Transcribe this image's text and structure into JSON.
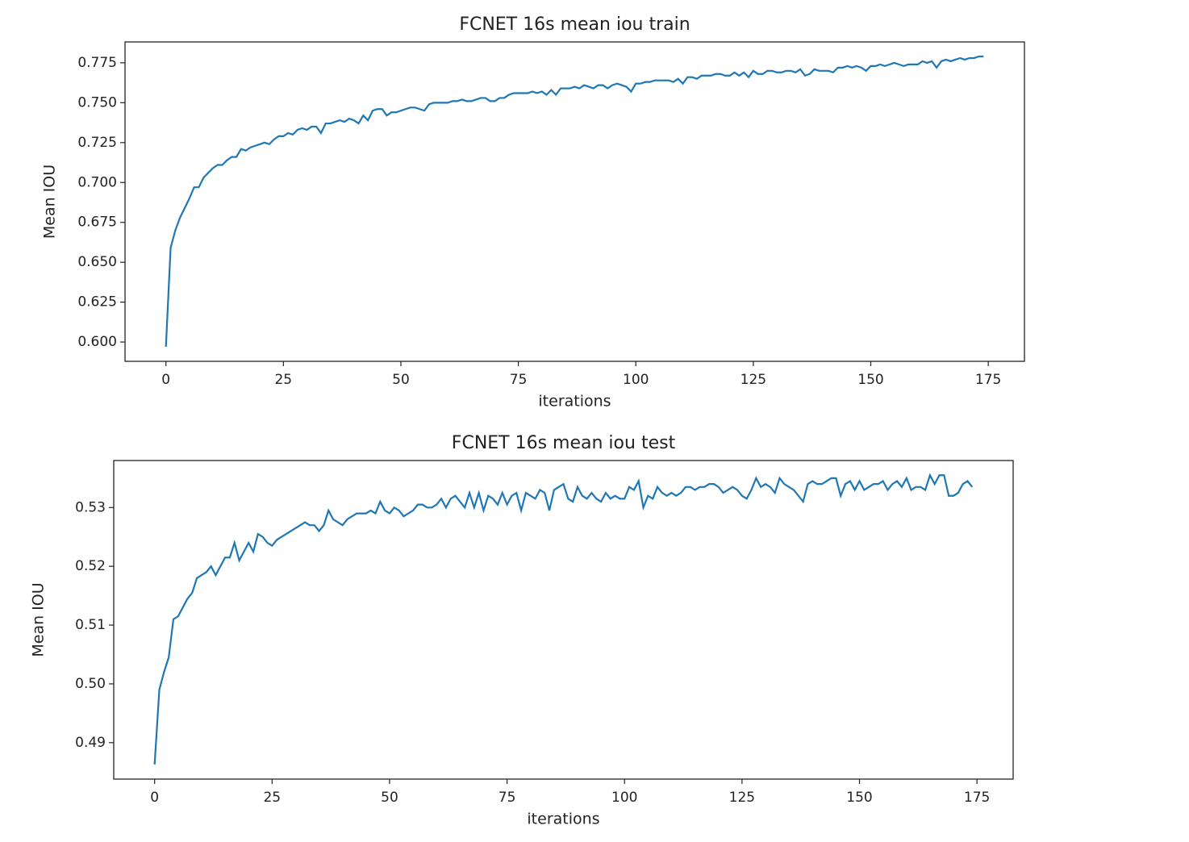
{
  "chart_data": [
    {
      "type": "line",
      "title": "FCNET 16s mean iou train",
      "xlabel": "iterations",
      "ylabel": "Mean IOU",
      "color": "#1f77b4",
      "x": [
        0,
        1,
        2,
        3,
        4,
        5,
        6,
        7,
        8,
        9,
        10,
        11,
        12,
        13,
        14,
        15,
        16,
        17,
        18,
        19,
        20,
        21,
        22,
        23,
        24,
        25,
        26,
        27,
        28,
        29,
        30,
        31,
        32,
        33,
        34,
        35,
        36,
        37,
        38,
        39,
        40,
        41,
        42,
        43,
        44,
        45,
        46,
        47,
        48,
        49,
        50,
        51,
        52,
        53,
        54,
        55,
        56,
        57,
        58,
        59,
        60,
        61,
        62,
        63,
        64,
        65,
        66,
        67,
        68,
        69,
        70,
        71,
        72,
        73,
        74,
        75,
        76,
        77,
        78,
        79,
        80,
        81,
        82,
        83,
        84,
        85,
        86,
        87,
        88,
        89,
        90,
        91,
        92,
        93,
        94,
        95,
        96,
        97,
        98,
        99,
        100,
        101,
        102,
        103,
        104,
        105,
        106,
        107,
        108,
        109,
        110,
        111,
        112,
        113,
        114,
        115,
        116,
        117,
        118,
        119,
        120,
        121,
        122,
        123,
        124,
        125,
        126,
        127,
        128,
        129,
        130,
        131,
        132,
        133,
        134,
        135,
        136,
        137,
        138,
        139,
        140,
        141,
        142,
        143,
        144,
        145,
        146,
        147,
        148,
        149,
        150,
        151,
        152,
        153,
        154,
        155,
        156,
        157,
        158,
        159,
        160,
        161,
        162,
        163,
        164,
        165,
        166,
        167,
        168,
        169,
        170,
        171,
        172,
        173,
        174
      ],
      "values": [
        0.597,
        0.659,
        0.67,
        0.678,
        0.684,
        0.69,
        0.697,
        0.697,
        0.703,
        0.706,
        0.709,
        0.711,
        0.711,
        0.714,
        0.716,
        0.716,
        0.721,
        0.72,
        0.722,
        0.723,
        0.724,
        0.725,
        0.724,
        0.727,
        0.729,
        0.729,
        0.731,
        0.73,
        0.733,
        0.734,
        0.733,
        0.735,
        0.735,
        0.731,
        0.737,
        0.737,
        0.738,
        0.739,
        0.738,
        0.74,
        0.739,
        0.737,
        0.742,
        0.739,
        0.745,
        0.746,
        0.746,
        0.742,
        0.744,
        0.744,
        0.745,
        0.746,
        0.747,
        0.747,
        0.746,
        0.745,
        0.749,
        0.75,
        0.75,
        0.75,
        0.75,
        0.751,
        0.751,
        0.752,
        0.751,
        0.751,
        0.752,
        0.753,
        0.753,
        0.751,
        0.751,
        0.753,
        0.753,
        0.755,
        0.756,
        0.756,
        0.756,
        0.756,
        0.757,
        0.756,
        0.757,
        0.755,
        0.758,
        0.755,
        0.759,
        0.759,
        0.759,
        0.76,
        0.759,
        0.761,
        0.76,
        0.759,
        0.761,
        0.761,
        0.759,
        0.761,
        0.762,
        0.761,
        0.76,
        0.757,
        0.762,
        0.762,
        0.763,
        0.763,
        0.764,
        0.764,
        0.764,
        0.764,
        0.763,
        0.765,
        0.762,
        0.766,
        0.766,
        0.765,
        0.767,
        0.767,
        0.767,
        0.768,
        0.768,
        0.767,
        0.767,
        0.769,
        0.767,
        0.769,
        0.766,
        0.77,
        0.768,
        0.768,
        0.77,
        0.77,
        0.769,
        0.769,
        0.77,
        0.77,
        0.769,
        0.771,
        0.767,
        0.768,
        0.771,
        0.77,
        0.77,
        0.77,
        0.769,
        0.772,
        0.772,
        0.773,
        0.772,
        0.773,
        0.772,
        0.77,
        0.773,
        0.773,
        0.774,
        0.773,
        0.774,
        0.775,
        0.774,
        0.773,
        0.774,
        0.774,
        0.774,
        0.776,
        0.775,
        0.776,
        0.772,
        0.776,
        0.777,
        0.776,
        0.777,
        0.778,
        0.777,
        0.778,
        0.778,
        0.779,
        0.779
      ],
      "xlim": [
        -8.7,
        182.7
      ],
      "ylim": [
        0.5879,
        0.7881
      ],
      "xticks": [
        0,
        25,
        50,
        75,
        100,
        125,
        150,
        175
      ],
      "yticks": [
        {
          "value": 0.6,
          "label": "0.600"
        },
        0.625,
        {
          "value": 0.65,
          "label": "0.650"
        },
        0.675,
        {
          "value": 0.7,
          "label": "0.700"
        },
        0.725,
        {
          "value": 0.75,
          "label": "0.750"
        },
        0.775
      ]
    },
    {
      "type": "line",
      "title": "FCNET 16s mean iou test",
      "xlabel": "iterations",
      "ylabel": "Mean IOU",
      "color": "#1f77b4",
      "x": [
        0,
        1,
        2,
        3,
        4,
        5,
        6,
        7,
        8,
        9,
        10,
        11,
        12,
        13,
        14,
        15,
        16,
        17,
        18,
        19,
        20,
        21,
        22,
        23,
        24,
        25,
        26,
        27,
        28,
        29,
        30,
        31,
        32,
        33,
        34,
        35,
        36,
        37,
        38,
        39,
        40,
        41,
        42,
        43,
        44,
        45,
        46,
        47,
        48,
        49,
        50,
        51,
        52,
        53,
        54,
        55,
        56,
        57,
        58,
        59,
        60,
        61,
        62,
        63,
        64,
        65,
        66,
        67,
        68,
        69,
        70,
        71,
        72,
        73,
        74,
        75,
        76,
        77,
        78,
        79,
        80,
        81,
        82,
        83,
        84,
        85,
        86,
        87,
        88,
        89,
        90,
        91,
        92,
        93,
        94,
        95,
        96,
        97,
        98,
        99,
        100,
        101,
        102,
        103,
        104,
        105,
        106,
        107,
        108,
        109,
        110,
        111,
        112,
        113,
        114,
        115,
        116,
        117,
        118,
        119,
        120,
        121,
        122,
        123,
        124,
        125,
        126,
        127,
        128,
        129,
        130,
        131,
        132,
        133,
        134,
        135,
        136,
        137,
        138,
        139,
        140,
        141,
        142,
        143,
        144,
        145,
        146,
        147,
        148,
        149,
        150,
        151,
        152,
        153,
        154,
        155,
        156,
        157,
        158,
        159,
        160,
        161,
        162,
        163,
        164,
        165,
        166,
        167,
        168,
        169,
        170,
        171,
        172,
        173,
        174
      ],
      "values": [
        0.4863,
        0.499,
        0.502,
        0.5045,
        0.511,
        0.5115,
        0.513,
        0.5145,
        0.5155,
        0.518,
        0.5185,
        0.519,
        0.52,
        0.5185,
        0.52,
        0.5215,
        0.5215,
        0.524,
        0.521,
        0.5225,
        0.524,
        0.5225,
        0.5255,
        0.525,
        0.524,
        0.5235,
        0.5245,
        0.525,
        0.5255,
        0.526,
        0.5265,
        0.527,
        0.5275,
        0.527,
        0.527,
        0.526,
        0.527,
        0.5295,
        0.528,
        0.5275,
        0.527,
        0.528,
        0.5285,
        0.529,
        0.529,
        0.529,
        0.5295,
        0.529,
        0.531,
        0.5295,
        0.529,
        0.53,
        0.5295,
        0.5285,
        0.529,
        0.5295,
        0.5305,
        0.5305,
        0.53,
        0.53,
        0.5305,
        0.5315,
        0.53,
        0.5315,
        0.532,
        0.531,
        0.53,
        0.5325,
        0.53,
        0.5325,
        0.5295,
        0.532,
        0.5315,
        0.5305,
        0.5325,
        0.5305,
        0.532,
        0.5325,
        0.5295,
        0.5325,
        0.532,
        0.5315,
        0.533,
        0.5325,
        0.5295,
        0.533,
        0.5335,
        0.534,
        0.5315,
        0.531,
        0.5335,
        0.532,
        0.5315,
        0.5325,
        0.5315,
        0.531,
        0.5325,
        0.5315,
        0.532,
        0.5315,
        0.5315,
        0.5335,
        0.533,
        0.5345,
        0.53,
        0.532,
        0.5315,
        0.5335,
        0.5325,
        0.532,
        0.5325,
        0.532,
        0.5325,
        0.5335,
        0.5335,
        0.533,
        0.5335,
        0.5335,
        0.534,
        0.534,
        0.5335,
        0.5325,
        0.533,
        0.5335,
        0.533,
        0.532,
        0.5315,
        0.533,
        0.535,
        0.5335,
        0.534,
        0.5335,
        0.5325,
        0.535,
        0.534,
        0.5335,
        0.533,
        0.532,
        0.531,
        0.534,
        0.5345,
        0.534,
        0.534,
        0.5345,
        0.535,
        0.535,
        0.532,
        0.534,
        0.5345,
        0.533,
        0.5345,
        0.533,
        0.5335,
        0.534,
        0.534,
        0.5345,
        0.533,
        0.534,
        0.5345,
        0.5335,
        0.535,
        0.533,
        0.5335,
        0.5335,
        0.533,
        0.5355,
        0.534,
        0.5355,
        0.5355,
        0.532,
        0.532,
        0.5325,
        0.534,
        0.5345,
        0.5335
      ],
      "xlim": [
        -8.7,
        182.7
      ],
      "ylim": [
        0.4838,
        0.538
      ],
      "xticks": [
        0,
        25,
        50,
        75,
        100,
        125,
        150,
        175
      ],
      "yticks": [
        0.49,
        {
          "value": 0.5,
          "label": "0.50"
        },
        0.51,
        0.52,
        0.53
      ]
    }
  ]
}
